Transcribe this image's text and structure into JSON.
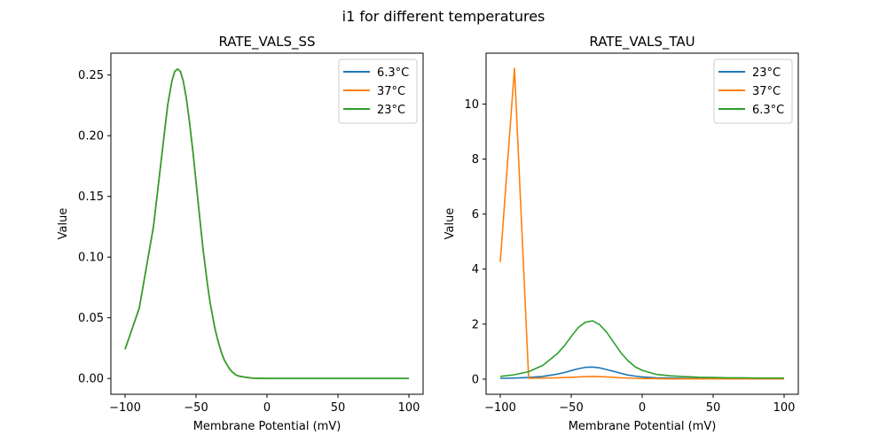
{
  "figure": {
    "suptitle": "i1 for different temperatures"
  },
  "chart_data": [
    {
      "type": "line",
      "title": "RATE_VALS_SS",
      "xlabel": "Membrane Potential (mV)",
      "ylabel": "Value",
      "xlim": [
        -110,
        110
      ],
      "ylim": [
        -0.013,
        0.268
      ],
      "xticks": [
        -100,
        -50,
        0,
        50,
        100
      ],
      "xtick_labels": [
        "−100",
        "−50",
        "0",
        "50",
        "100"
      ],
      "yticks": [
        0.0,
        0.05,
        0.1,
        0.15,
        0.2,
        0.25
      ],
      "ytick_labels": [
        "0.00",
        "0.05",
        "0.10",
        "0.15",
        "0.20",
        "0.25"
      ],
      "legend_position": "top-right",
      "x": [
        -100,
        -90,
        -80,
        -75,
        -70,
        -67,
        -65,
        -63,
        -61,
        -59,
        -57,
        -55,
        -52,
        -50,
        -47,
        -45,
        -42,
        -40,
        -37,
        -35,
        -32,
        -30,
        -27,
        -25,
        -22,
        -20,
        -15,
        -10,
        0,
        10,
        20,
        30,
        40,
        50,
        60,
        70,
        80,
        90,
        100
      ],
      "series": [
        {
          "name": "6.3°C",
          "color": "#1f77b4",
          "values": [
            0.024,
            0.058,
            0.125,
            0.175,
            0.225,
            0.245,
            0.253,
            0.255,
            0.253,
            0.245,
            0.232,
            0.215,
            0.185,
            0.162,
            0.128,
            0.106,
            0.078,
            0.062,
            0.043,
            0.033,
            0.021,
            0.015,
            0.009,
            0.006,
            0.003,
            0.002,
            0.001,
            0.0003,
            0,
            0,
            0,
            0,
            0,
            0,
            0,
            0,
            0,
            0,
            0
          ]
        },
        {
          "name": "37°C",
          "color": "#ff7f0e",
          "values": [
            0.024,
            0.058,
            0.125,
            0.175,
            0.225,
            0.245,
            0.253,
            0.255,
            0.253,
            0.245,
            0.232,
            0.215,
            0.185,
            0.162,
            0.128,
            0.106,
            0.078,
            0.062,
            0.043,
            0.033,
            0.021,
            0.015,
            0.009,
            0.006,
            0.003,
            0.002,
            0.001,
            0.0003,
            0,
            0,
            0,
            0,
            0,
            0,
            0,
            0,
            0,
            0,
            0
          ]
        },
        {
          "name": "23°C",
          "color": "#2ca02c",
          "values": [
            0.024,
            0.058,
            0.125,
            0.175,
            0.225,
            0.245,
            0.253,
            0.255,
            0.253,
            0.245,
            0.232,
            0.215,
            0.185,
            0.162,
            0.128,
            0.106,
            0.078,
            0.062,
            0.043,
            0.033,
            0.021,
            0.015,
            0.009,
            0.006,
            0.003,
            0.002,
            0.001,
            0.0003,
            0,
            0,
            0,
            0,
            0,
            0,
            0,
            0,
            0,
            0,
            0
          ]
        }
      ]
    },
    {
      "type": "line",
      "title": "RATE_VALS_TAU",
      "xlabel": "Membrane Potential (mV)",
      "ylabel": "Value",
      "xlim": [
        -110,
        110
      ],
      "ylim": [
        -0.55,
        11.85
      ],
      "xticks": [
        -100,
        -50,
        0,
        50,
        100
      ],
      "xtick_labels": [
        "−100",
        "−50",
        "0",
        "50",
        "100"
      ],
      "yticks": [
        0,
        2,
        4,
        6,
        8,
        10
      ],
      "ytick_labels": [
        "0",
        "2",
        "4",
        "6",
        "8",
        "10"
      ],
      "legend_position": "top-right",
      "x": [
        -100,
        -90,
        -80,
        -70,
        -60,
        -55,
        -50,
        -45,
        -40,
        -35,
        -30,
        -25,
        -20,
        -15,
        -10,
        -5,
        0,
        10,
        20,
        30,
        40,
        50,
        60,
        70,
        80,
        90,
        100
      ],
      "series": [
        {
          "name": "23°C",
          "color": "#1f77b4",
          "values": [
            0.03,
            0.04,
            0.06,
            0.1,
            0.18,
            0.24,
            0.31,
            0.38,
            0.43,
            0.44,
            0.41,
            0.35,
            0.28,
            0.21,
            0.15,
            0.11,
            0.08,
            0.05,
            0.04,
            0.03,
            0.03,
            0.02,
            0.02,
            0.02,
            0.02,
            0.02,
            0.02
          ]
        },
        {
          "name": "37°C",
          "color": "#ff7f0e",
          "values": [
            4.26,
            11.3,
            0.03,
            0.04,
            0.05,
            0.06,
            0.07,
            0.08,
            0.09,
            0.1,
            0.09,
            0.08,
            0.07,
            0.05,
            0.04,
            0.03,
            0.02,
            0.02,
            0.01,
            0.01,
            0.01,
            0.01,
            0.01,
            0.01,
            0.01,
            0.01,
            0.01
          ]
        },
        {
          "name": "6.3°C",
          "color": "#2ca02c",
          "values": [
            0.1,
            0.16,
            0.27,
            0.5,
            0.92,
            1.2,
            1.55,
            1.88,
            2.07,
            2.12,
            1.98,
            1.7,
            1.33,
            0.96,
            0.67,
            0.45,
            0.32,
            0.17,
            0.12,
            0.09,
            0.07,
            0.06,
            0.05,
            0.05,
            0.04,
            0.04,
            0.04
          ]
        }
      ]
    }
  ]
}
